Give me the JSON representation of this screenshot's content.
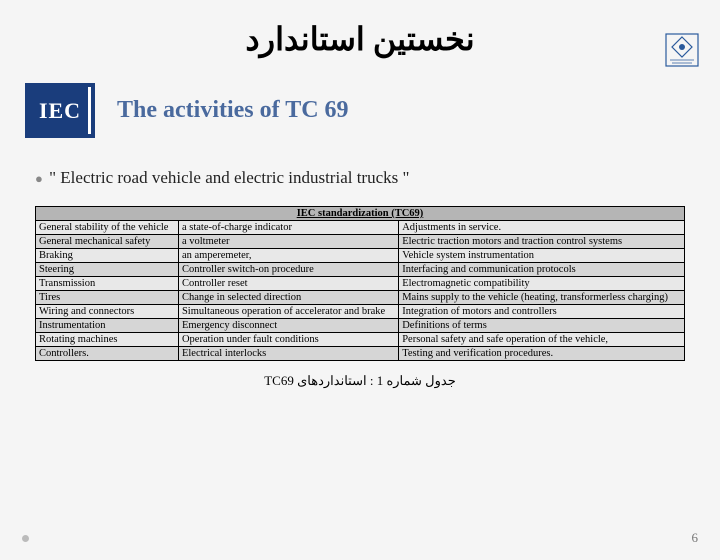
{
  "title_persian": "نخستین استاندارد",
  "subtitle": "The activities of TC 69",
  "iec_label": "IEC",
  "quote": "\" Electric road vehicle and electric industrial trucks \"",
  "table": {
    "header": "IEC standardization (TC69)",
    "rows": [
      [
        "General stability of the vehicle",
        "a state-of-charge indicator",
        "Adjustments in service."
      ],
      [
        "General mechanical safety",
        "a voltmeter",
        "Electric traction motors and traction control systems"
      ],
      [
        "Braking",
        "an amperemeter,",
        "Vehicle system instrumentation"
      ],
      [
        "Steering",
        "Controller switch-on procedure",
        "Interfacing and communication protocols"
      ],
      [
        "Transmission",
        "  Controller reset",
        "Electromagnetic compatibility"
      ],
      [
        "Tires",
        "Change in selected direction",
        "Mains supply to the vehicle (heating, transformerless charging)"
      ],
      [
        "Wiring and connectors",
        "Simultaneous operation of accelerator and brake",
        "Integration of motors and controllers"
      ],
      [
        "Instrumentation",
        "Emergency disconnect",
        "Definitions of terms"
      ],
      [
        "Rotating machines",
        "Operation under fault conditions",
        "Personal safety and safe operation of the vehicle,"
      ],
      [
        "Controllers.",
        "Electrical interlocks",
        "Testing and verification procedures."
      ]
    ]
  },
  "caption": "جدول شماره 1 : استانداردهای TC69",
  "page_number": "6"
}
